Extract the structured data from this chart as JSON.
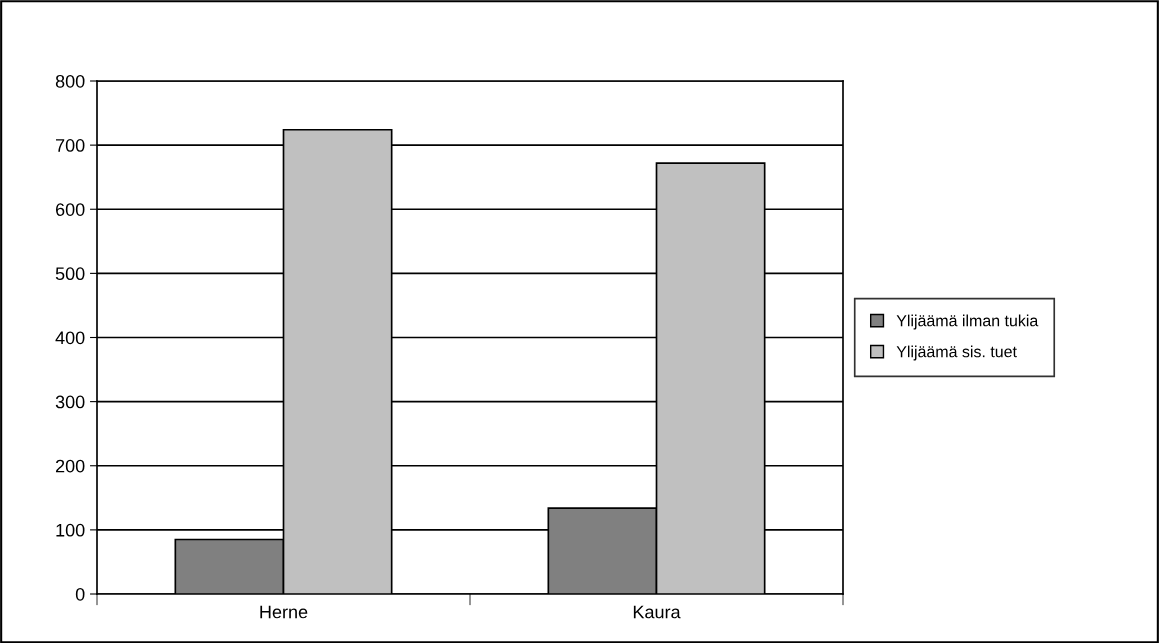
{
  "chart_data": {
    "type": "bar",
    "categories": [
      "Herne",
      "Kaura"
    ],
    "series": [
      {
        "name": "Ylijäämä ilman tukia",
        "color": "#808080",
        "values": [
          85,
          134
        ]
      },
      {
        "name": "Ylijäämä sis. tuet",
        "color": "#c0c0c0",
        "values": [
          724,
          672
        ]
      }
    ],
    "ylim": [
      0,
      800
    ],
    "yticks": [
      0,
      100,
      200,
      300,
      400,
      500,
      600,
      700,
      800
    ],
    "grid": "y",
    "legend": "right"
  }
}
